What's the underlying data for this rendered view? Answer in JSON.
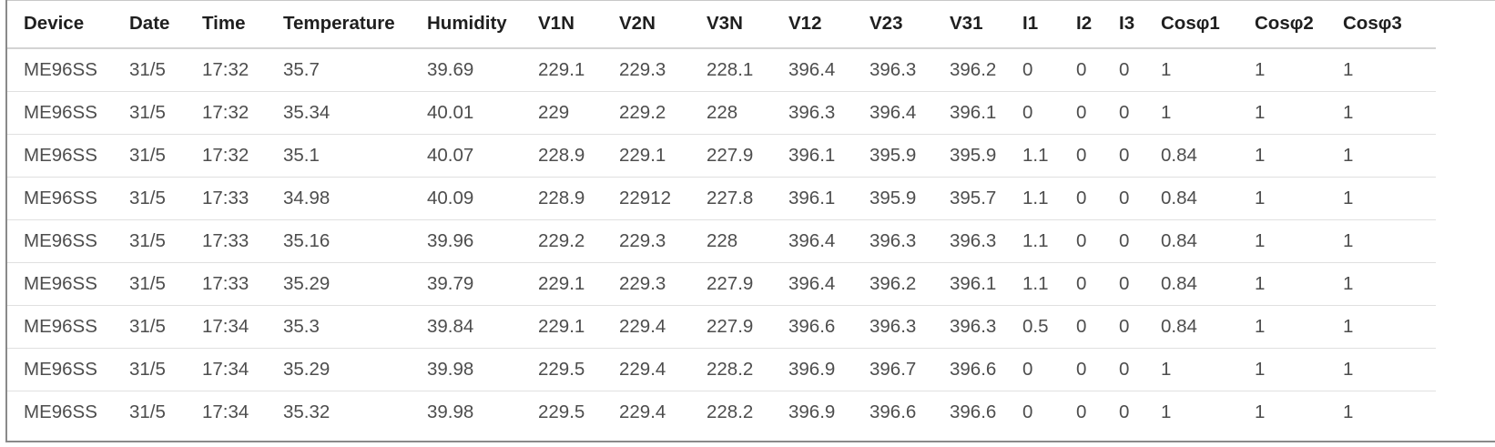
{
  "table": {
    "columns": [
      "Device",
      "Date",
      "Time",
      "Temperature",
      "Humidity",
      "V1N",
      "V2N",
      "V3N",
      "V12",
      "V23",
      "V31",
      "I1",
      "I2",
      "I3",
      "Cosφ1",
      "Cosφ2",
      "Cosφ3"
    ],
    "rows": [
      [
        "ME96SS",
        "31/5",
        "17:32",
        "35.7",
        "39.69",
        "229.1",
        "229.3",
        "228.1",
        "396.4",
        "396.3",
        "396.2",
        "0",
        "0",
        "0",
        "1",
        "1",
        "1"
      ],
      [
        "ME96SS",
        "31/5",
        "17:32",
        "35.34",
        "40.01",
        "229",
        "229.2",
        "228",
        "396.3",
        "396.4",
        "396.1",
        "0",
        "0",
        "0",
        "1",
        "1",
        "1"
      ],
      [
        "ME96SS",
        "31/5",
        "17:32",
        "35.1",
        "40.07",
        "228.9",
        "229.1",
        "227.9",
        "396.1",
        "395.9",
        "395.9",
        "1.1",
        "0",
        "0",
        "0.84",
        "1",
        "1"
      ],
      [
        "ME96SS",
        "31/5",
        "17:33",
        "34.98",
        "40.09",
        "228.9",
        "22912",
        "227.8",
        "396.1",
        "395.9",
        "395.7",
        "1.1",
        "0",
        "0",
        "0.84",
        "1",
        "1"
      ],
      [
        "ME96SS",
        "31/5",
        "17:33",
        "35.16",
        "39.96",
        "229.2",
        "229.3",
        "228",
        "396.4",
        "396.3",
        "396.3",
        "1.1",
        "0",
        "0",
        "0.84",
        "1",
        "1"
      ],
      [
        "ME96SS",
        "31/5",
        "17:33",
        "35.29",
        "39.79",
        "229.1",
        "229.3",
        "227.9",
        "396.4",
        "396.2",
        "396.1",
        "1.1",
        "0",
        "0",
        "0.84",
        "1",
        "1"
      ],
      [
        "ME96SS",
        "31/5",
        "17:34",
        "35.3",
        "39.84",
        "229.1",
        "229.4",
        "227.9",
        "396.6",
        "396.3",
        "396.3",
        "0.5",
        "0",
        "0",
        "0.84",
        "1",
        "1"
      ],
      [
        "ME96SS",
        "31/5",
        "17:34",
        "35.29",
        "39.98",
        "229.5",
        "229.4",
        "228.2",
        "396.9",
        "396.7",
        "396.6",
        "0",
        "0",
        "0",
        "1",
        "1",
        "1"
      ],
      [
        "ME96SS",
        "31/5",
        "17:34",
        "35.32",
        "39.98",
        "229.5",
        "229.4",
        "228.2",
        "396.9",
        "396.6",
        "396.6",
        "0",
        "0",
        "0",
        "1",
        "1",
        "1"
      ]
    ]
  }
}
